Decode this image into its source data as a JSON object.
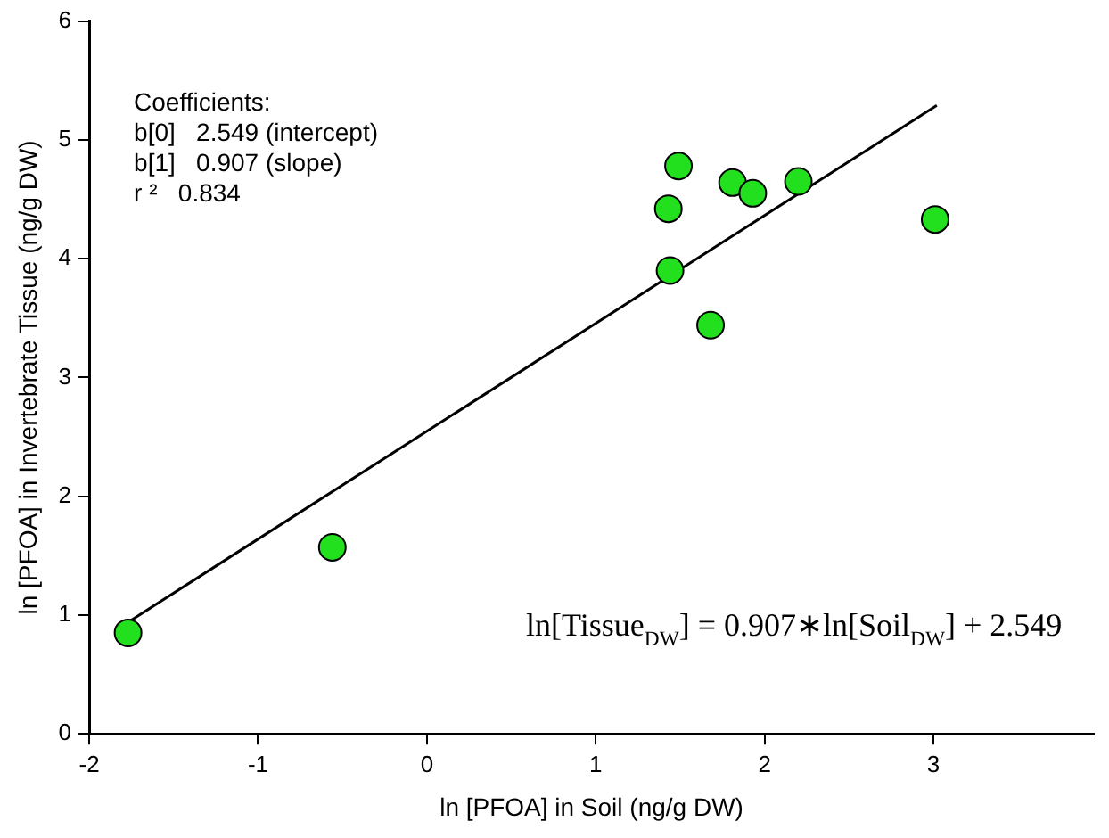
{
  "chart_data": {
    "type": "scatter",
    "xlabel": "ln [PFOA] in Soil (ng/g DW)",
    "ylabel": "ln [PFOA] in Invertebrate Tissue (ng/g DW)",
    "xlim": [
      -2,
      3.95
    ],
    "xticks": [
      -2,
      -1,
      0,
      1,
      2,
      3
    ],
    "ylim": [
      0,
      6
    ],
    "yticks": [
      0,
      1,
      2,
      3,
      4,
      5,
      6
    ],
    "grid": false,
    "legend": false,
    "marker": "circle",
    "series": [
      {
        "color": "#22e01e",
        "x": [
          -1.77,
          -0.56,
          1.43,
          1.49,
          1.44,
          1.68,
          1.81,
          1.93,
          2.2,
          3.01
        ],
        "values": [
          0.85,
          1.57,
          4.42,
          4.78,
          3.9,
          3.44,
          4.64,
          4.55,
          4.65,
          4.33
        ]
      },
      {
        "type": "line",
        "color": "#000000",
        "x": [
          -1.77,
          3.02
        ],
        "values": [
          0.94,
          5.29
        ],
        "line_style": "solid",
        "marker": "none"
      }
    ],
    "annotations": [
      "Coefficients:",
      "b[0]   2.549 (intercept)",
      "b[1]   0.907 (slope)",
      "r ²   0.834",
      "ln[Tissue$_{DW}$] = 0.907∗ln[Soil$_{DW}$] + 2.549"
    ]
  }
}
